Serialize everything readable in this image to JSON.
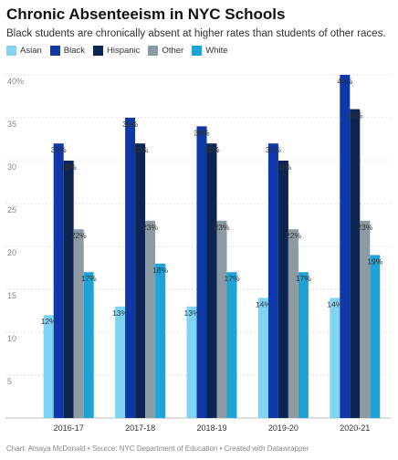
{
  "title": "Chronic Absenteeism in NYC Schools",
  "subtitle": "Black students are chronically absent at higher rates than students of other races.",
  "footer": "Chart: Amaya McDonald • Source: NYC Department of Education • Created with Datawrapper",
  "chart_data": {
    "type": "bar",
    "title": "Chronic Absenteeism in NYC Schools",
    "subtitle": "Black students are chronically absent at higher rates than students of other races.",
    "categories": [
      "2016-17",
      "2017-18",
      "2018-19",
      "2019-20",
      "2020-21"
    ],
    "series": [
      {
        "name": "Asian",
        "color": "#7fd4f4",
        "values": [
          12,
          13,
          13,
          14,
          14
        ]
      },
      {
        "name": "Black",
        "color": "#0e37a8",
        "values": [
          32,
          35,
          34,
          32,
          40
        ]
      },
      {
        "name": "Hispanic",
        "color": "#0d2552",
        "values": [
          30,
          32,
          32,
          30,
          36
        ]
      },
      {
        "name": "Other",
        "color": "#8c9ba3",
        "values": [
          22,
          23,
          23,
          22,
          23
        ]
      },
      {
        "name": "White",
        "color": "#1fa3d4",
        "values": [
          17,
          18,
          17,
          17,
          19
        ]
      }
    ],
    "value_suffix": "%",
    "ylim": [
      0,
      40
    ],
    "yticks": [
      "0",
      "5",
      "10",
      "15",
      "20",
      "25",
      "30",
      "35",
      "40%"
    ],
    "grid": true,
    "legend_position": "top-left"
  }
}
